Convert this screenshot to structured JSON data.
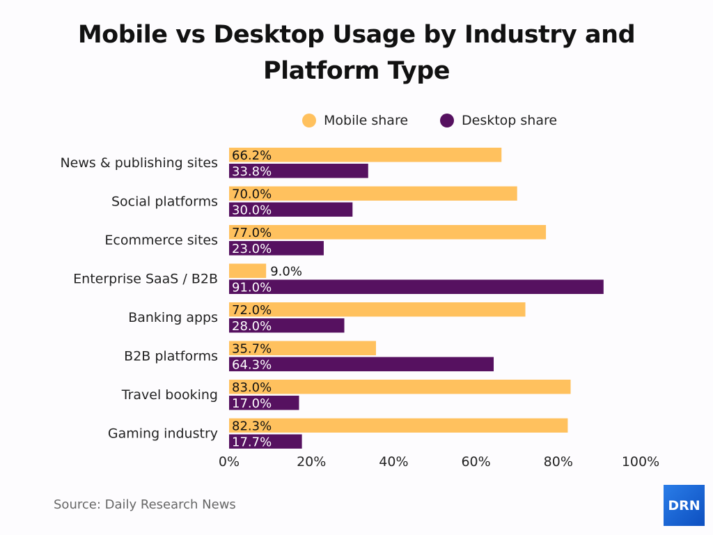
{
  "chart_data": {
    "type": "bar",
    "orientation": "horizontal",
    "title": "Mobile vs Desktop Usage by Industry and Platform Type",
    "categories": [
      "News & publishing sites",
      "Social platforms",
      "Ecommerce sites",
      "Enterprise SaaS / B2B",
      "Banking apps",
      "B2B platforms",
      "Travel booking",
      "Gaming industry"
    ],
    "series": [
      {
        "name": "Mobile share",
        "color": "#ffc15e",
        "values": [
          66.2,
          70.0,
          77.0,
          9.0,
          72.0,
          35.7,
          83.0,
          82.3
        ]
      },
      {
        "name": "Desktop share",
        "color": "#561160",
        "values": [
          33.8,
          30.0,
          23.0,
          91.0,
          28.0,
          64.3,
          17.0,
          17.7
        ]
      }
    ],
    "xlim": [
      0,
      100
    ],
    "xticks": [
      "0%",
      "20%",
      "40%",
      "60%",
      "80%",
      "100%"
    ],
    "xtick_values": [
      0,
      20,
      40,
      60,
      80,
      100
    ],
    "grid": false,
    "legend_placement": "top"
  },
  "source": "Source: Daily Research News",
  "logo": "DRN"
}
